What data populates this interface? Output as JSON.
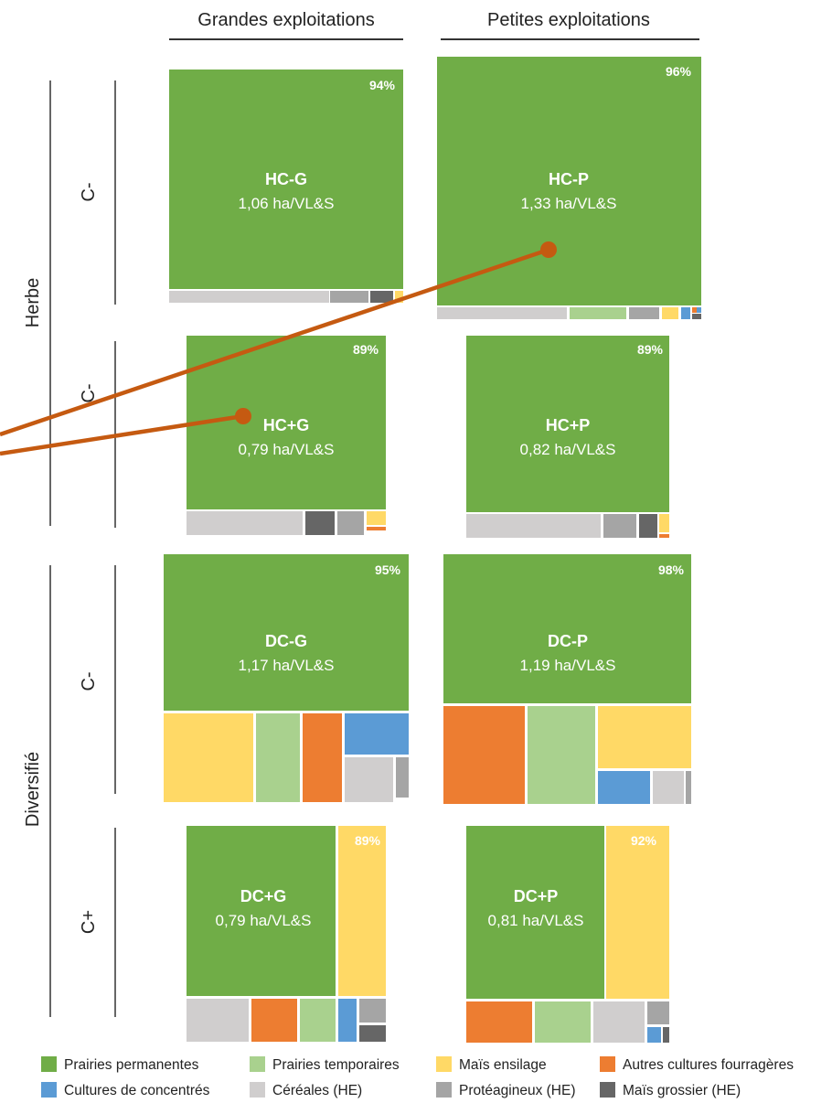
{
  "chart_data": {
    "type": "treemap",
    "column_headers": [
      "Grandes exploitations",
      "Petites exploitations"
    ],
    "group_labels": [
      "Herbe",
      "Diversifié"
    ],
    "subgroup_labels": [
      "C-",
      "C-",
      "C-",
      "C+"
    ],
    "legend": [
      {
        "key": "pp",
        "label": "Prairies permanentes",
        "color": "#70ad47"
      },
      {
        "key": "pt",
        "label": "Prairies temporaires",
        "color": "#a9d18e"
      },
      {
        "key": "me",
        "label": "Maïs ensilage",
        "color": "#ffd966"
      },
      {
        "key": "acf",
        "label": "Autres cultures fourragères",
        "color": "#ed7d31"
      },
      {
        "key": "cc",
        "label": "Cultures de concentrés",
        "color": "#5b9bd5"
      },
      {
        "key": "cer",
        "label": "Céréales (HE)",
        "color": "#d0cece"
      },
      {
        "key": "pro",
        "label": "Protéagineux (HE)",
        "color": "#a5a5a5"
      },
      {
        "key": "mg",
        "label": "Maïs grossier (HE)",
        "color": "#666666"
      }
    ],
    "blocks": [
      {
        "id": "HC-G",
        "label": "HC-G",
        "value": "1,06 ha/VL&S",
        "percent": "94%"
      },
      {
        "id": "HC-P",
        "label": "HC-P",
        "value": "1,33 ha/VL&S",
        "percent": "96%"
      },
      {
        "id": "HC+G",
        "label": "HC+G",
        "value": "0,79 ha/VL&S",
        "percent": "89%"
      },
      {
        "id": "HC+P",
        "label": "HC+P",
        "value": "0,82 ha/VL&S",
        "percent": "89%"
      },
      {
        "id": "DC-G",
        "label": "DC-G",
        "value": "1,17 ha/VL&S",
        "percent": "95%"
      },
      {
        "id": "DC-P",
        "label": "DC-P",
        "value": "1,19 ha/VL&S",
        "percent": "98%"
      },
      {
        "id": "DC+G",
        "label": "DC+G",
        "value": "0,79 ha/VL&S",
        "percent": "89%"
      },
      {
        "id": "DC+P",
        "label": "DC+P",
        "value": "0,81 ha/VL&S",
        "percent": "92%"
      }
    ]
  }
}
